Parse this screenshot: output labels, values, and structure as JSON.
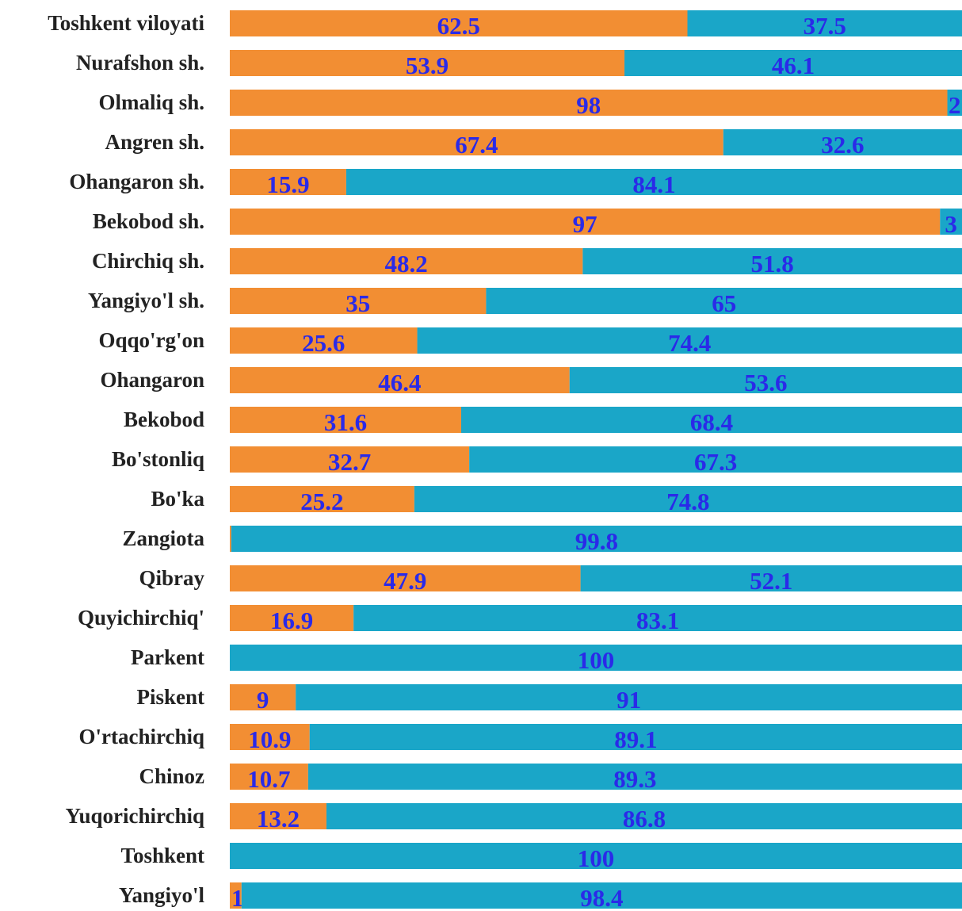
{
  "chart_data": {
    "type": "stacked-bar-horizontal",
    "categories": [
      "Toshkent viloyati",
      "Nurafshon sh.",
      "Olmaliq sh.",
      "Angren sh.",
      "Ohangaron sh.",
      "Bekobod sh.",
      "Chirchiq sh.",
      "Yangiyo'l sh.",
      "Oqqo'rg'on",
      "Ohangaron",
      "Bekobod",
      "Bo'stonliq",
      "Bo'ka",
      "Zangiota",
      "Qibray",
      "Quyichirchiq'",
      "Parkent",
      "Piskent",
      "O'rtachirchiq",
      "Chinoz",
      "Yuqorichirchiq",
      "Toshkent",
      "Yangiyo'l"
    ],
    "series": [
      {
        "color": "#f28e33",
        "values": [
          62.5,
          53.9,
          98,
          67.4,
          15.9,
          97,
          48.2,
          35,
          25.6,
          46.4,
          31.6,
          32.7,
          25.2,
          0.2,
          47.9,
          16.9,
          0,
          9,
          10.9,
          10.7,
          13.2,
          0,
          1.6
        ]
      },
      {
        "color": "#1aa6c8",
        "values": [
          37.5,
          46.1,
          2,
          32.6,
          84.1,
          3,
          51.8,
          65,
          74.4,
          53.6,
          68.4,
          67.3,
          74.8,
          99.8,
          52.1,
          83.1,
          100,
          91,
          89.1,
          89.3,
          86.8,
          100,
          98.4
        ]
      }
    ],
    "xlim": [
      0,
      100
    ]
  }
}
